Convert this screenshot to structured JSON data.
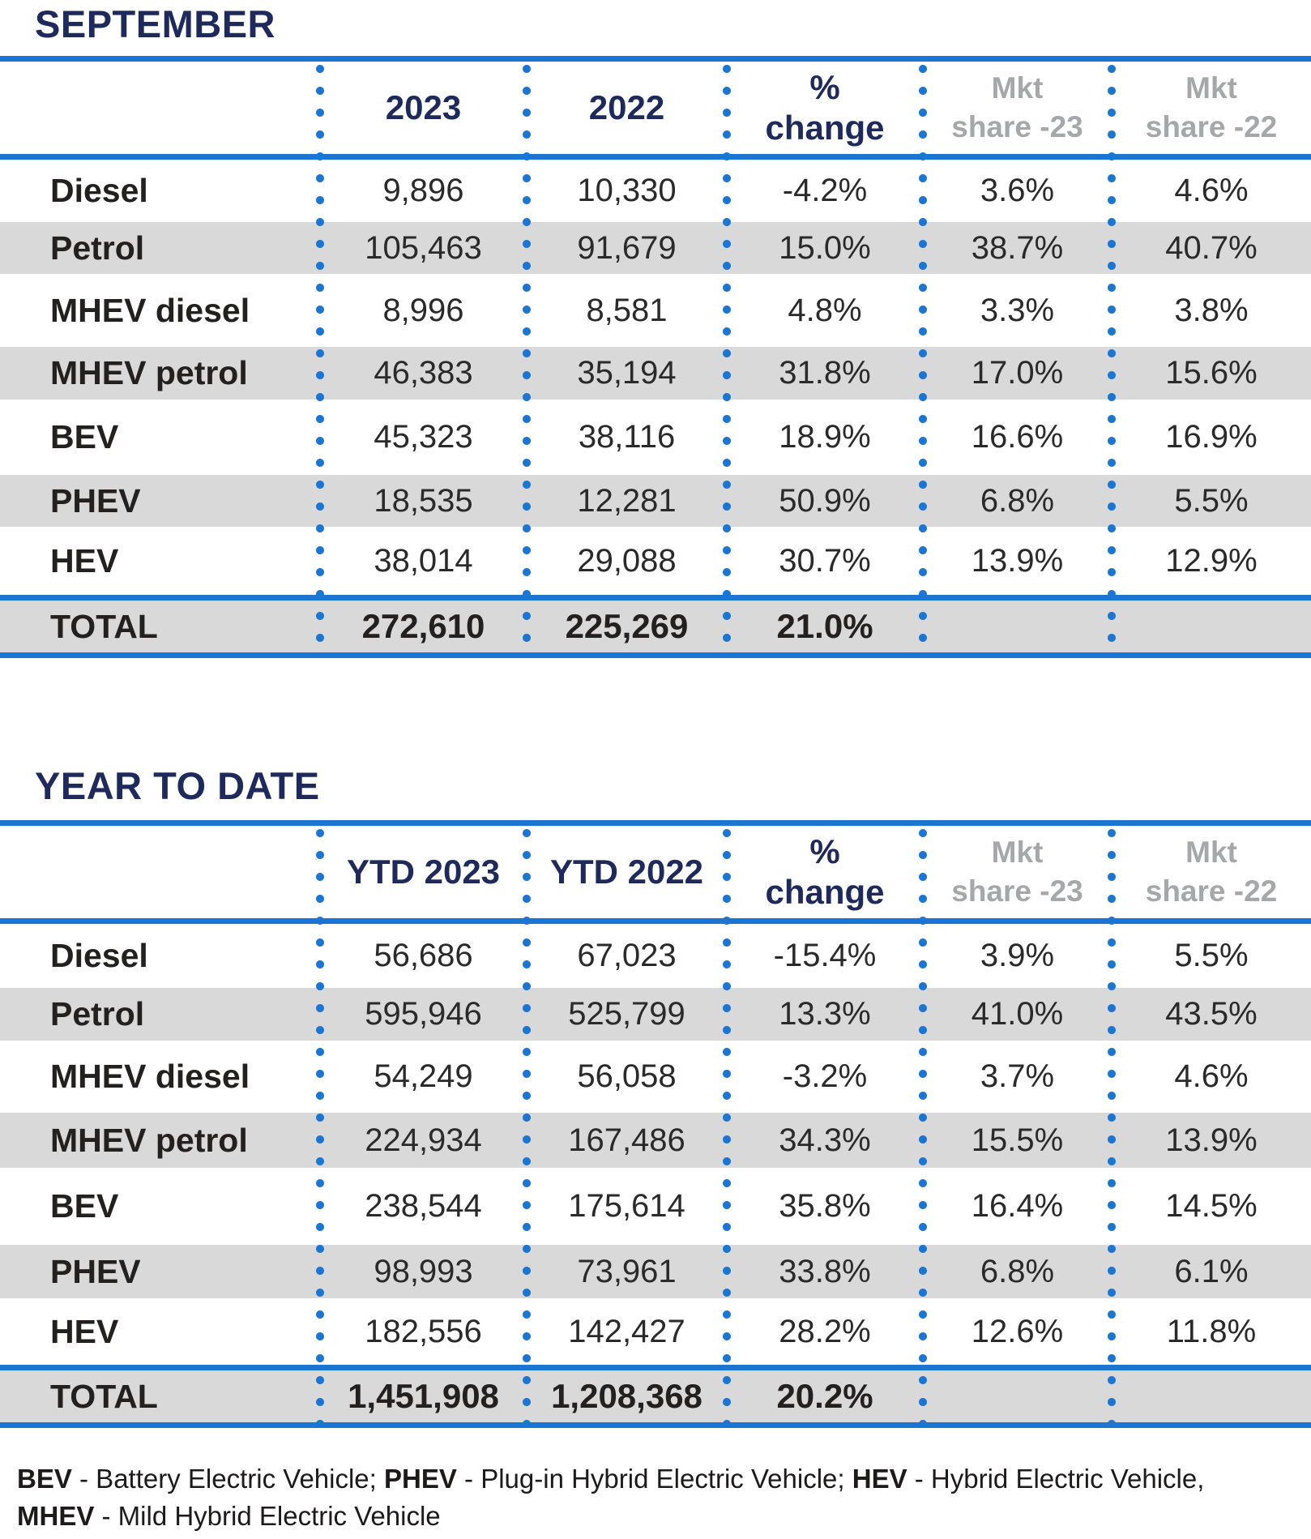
{
  "page": {
    "colors": {
      "navy": "#1e2a5c",
      "accent_blue": "#1b75d2",
      "stripe_gray": "#d9d9d9",
      "header_gray": "#a5a7a9",
      "text_dark": "#262323"
    }
  },
  "tables": [
    {
      "title": "SEPTEMBER",
      "col_headers": [
        {
          "style": "navy",
          "lines": [
            "2023"
          ]
        },
        {
          "style": "navy",
          "lines": [
            "2022"
          ]
        },
        {
          "style": "navy",
          "lines": [
            "%",
            "change"
          ]
        },
        {
          "style": "gray",
          "lines": [
            "Mkt",
            "share -23"
          ]
        },
        {
          "style": "gray",
          "lines": [
            "Mkt",
            "share -22"
          ]
        }
      ],
      "rows": [
        {
          "label": "Diesel",
          "striped": false,
          "values": [
            "9,896",
            "10,330",
            "-4.2%",
            "3.6%",
            "4.6%"
          ]
        },
        {
          "label": "Petrol",
          "striped": true,
          "values": [
            "105,463",
            "91,679",
            "15.0%",
            "38.7%",
            "40.7%"
          ]
        },
        {
          "label": "MHEV diesel",
          "striped": false,
          "values": [
            "8,996",
            "8,581",
            "4.8%",
            "3.3%",
            "3.8%"
          ]
        },
        {
          "label": "MHEV petrol",
          "striped": true,
          "values": [
            "46,383",
            "35,194",
            "31.8%",
            "17.0%",
            "15.6%"
          ]
        },
        {
          "label": "BEV",
          "striped": false,
          "values": [
            "45,323",
            "38,116",
            "18.9%",
            "16.6%",
            "16.9%"
          ]
        },
        {
          "label": "PHEV",
          "striped": true,
          "values": [
            "18,535",
            "12,281",
            "50.9%",
            "6.8%",
            "5.5%"
          ]
        },
        {
          "label": "HEV",
          "striped": false,
          "values": [
            "38,014",
            "29,088",
            "30.7%",
            "13.9%",
            "12.9%"
          ]
        }
      ],
      "total": {
        "label": "TOTAL",
        "values": [
          "272,610",
          "225,269",
          "21.0%",
          "",
          ""
        ]
      }
    },
    {
      "title": "YEAR TO DATE",
      "col_headers": [
        {
          "style": "navy",
          "lines": [
            "YTD 2023"
          ]
        },
        {
          "style": "navy",
          "lines": [
            "YTD 2022"
          ]
        },
        {
          "style": "navy",
          "lines": [
            "%",
            "change"
          ]
        },
        {
          "style": "gray",
          "lines": [
            "Mkt",
            "share -23"
          ]
        },
        {
          "style": "gray",
          "lines": [
            "Mkt",
            "share -22"
          ]
        }
      ],
      "rows": [
        {
          "label": "Diesel",
          "striped": false,
          "values": [
            "56,686",
            "67,023",
            "-15.4%",
            "3.9%",
            "5.5%"
          ]
        },
        {
          "label": "Petrol",
          "striped": true,
          "values": [
            "595,946",
            "525,799",
            "13.3%",
            "41.0%",
            "43.5%"
          ]
        },
        {
          "label": "MHEV diesel",
          "striped": false,
          "values": [
            "54,249",
            "56,058",
            "-3.2%",
            "3.7%",
            "4.6%"
          ]
        },
        {
          "label": "MHEV petrol",
          "striped": true,
          "values": [
            "224,934",
            "167,486",
            "34.3%",
            "15.5%",
            "13.9%"
          ]
        },
        {
          "label": "BEV",
          "striped": false,
          "values": [
            "238,544",
            "175,614",
            "35.8%",
            "16.4%",
            "14.5%"
          ]
        },
        {
          "label": "PHEV",
          "striped": true,
          "values": [
            "98,993",
            "73,961",
            "33.8%",
            "6.8%",
            "6.1%"
          ]
        },
        {
          "label": "HEV",
          "striped": false,
          "values": [
            "182,556",
            "142,427",
            "28.2%",
            "12.6%",
            "11.8%"
          ]
        }
      ],
      "total": {
        "label": "TOTAL",
        "values": [
          "1,451,908",
          "1,208,368",
          "20.2%",
          "",
          ""
        ]
      }
    }
  ],
  "footnote": {
    "lines": [
      {
        "segments": [
          {
            "text": "BEV",
            "bold": true
          },
          {
            "text": " - Battery Electric Vehicle; ",
            "bold": false
          },
          {
            "text": "PHEV",
            "bold": true
          },
          {
            "text": " - Plug-in Hybrid Electric Vehicle; ",
            "bold": false
          },
          {
            "text": "HEV",
            "bold": true
          },
          {
            "text": " - Hybrid Electric Vehicle,",
            "bold": false
          }
        ]
      },
      {
        "segments": [
          {
            "text": "MHEV",
            "bold": true
          },
          {
            "text": " - Mild Hybrid Electric Vehicle",
            "bold": false
          }
        ]
      }
    ]
  }
}
